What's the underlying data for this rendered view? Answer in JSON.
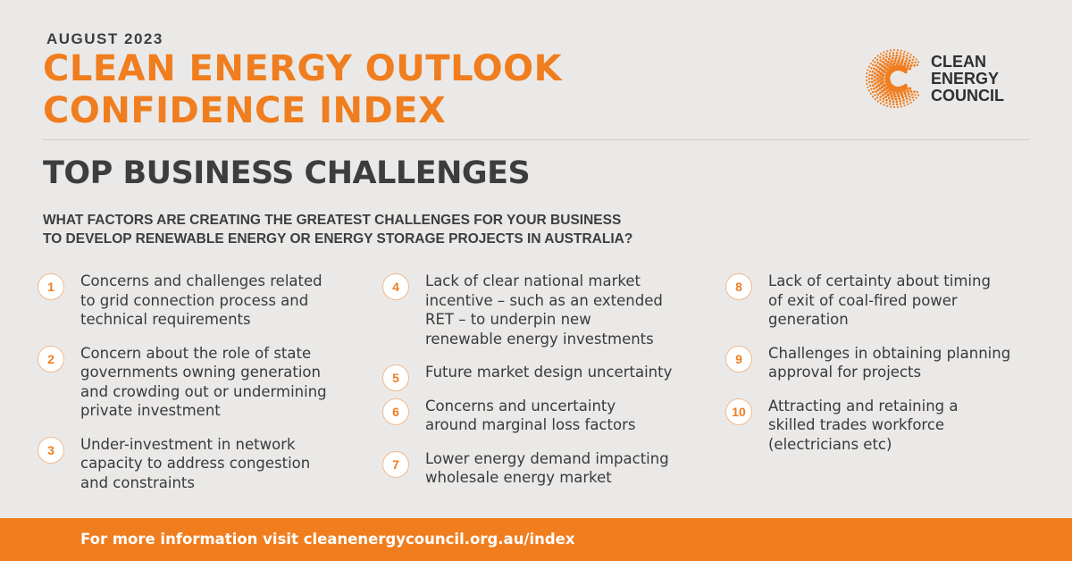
{
  "header": {
    "date": "AUGUST 2023",
    "title_line1": "CLEAN ENERGY OUTLOOK",
    "title_line2": "CONFIDENCE INDEX"
  },
  "logo": {
    "icon": "clean-energy-council-logo",
    "line1": "CLEAN",
    "line2": "ENERGY",
    "line3": "COUNCIL"
  },
  "section": {
    "heading": "TOP BUSINESS CHALLENGES",
    "question_line1": "WHAT FACTORS ARE CREATING THE GREATEST CHALLENGES FOR YOUR BUSINESS",
    "question_line2": "TO DEVELOP RENEWABLE ENERGY OR ENERGY STORAGE PROJECTS IN AUSTRALIA?"
  },
  "challenges": [
    {
      "num": "1",
      "lines": [
        "Concerns and challenges related",
        "to grid connection process and",
        "technical requirements"
      ]
    },
    {
      "num": "2",
      "lines": [
        "Concern about the role of state",
        "governments owning generation",
        "and crowding out or undermining",
        "private investment"
      ]
    },
    {
      "num": "3",
      "lines": [
        "Under-investment in network",
        "capacity to address congestion",
        "and constraints"
      ]
    },
    {
      "num": "4",
      "lines": [
        "Lack of clear national market",
        "incentive – such as an extended",
        "RET – to underpin new",
        "renewable energy investments"
      ]
    },
    {
      "num": "5",
      "lines": [
        "Future market design uncertainty"
      ]
    },
    {
      "num": "6",
      "lines": [
        "Concerns and uncertainty",
        "around marginal loss factors"
      ]
    },
    {
      "num": "7",
      "lines": [
        "Lower energy demand impacting",
        "wholesale energy market"
      ]
    },
    {
      "num": "8",
      "lines": [
        "Lack of certainty about timing",
        "of exit of coal-fired power",
        "generation"
      ]
    },
    {
      "num": "9",
      "lines": [
        "Challenges in obtaining planning",
        "approval for projects"
      ]
    },
    {
      "num": "10",
      "lines": [
        "Attracting and retaining a",
        "skilled trades workforce",
        "(electricians etc)"
      ]
    }
  ],
  "footer": {
    "text": "For more information visit cleanenergycouncil.org.au/index"
  },
  "colors": {
    "accent": "#f07d1e",
    "background": "#eae9e8",
    "text": "#3a3a3a"
  }
}
